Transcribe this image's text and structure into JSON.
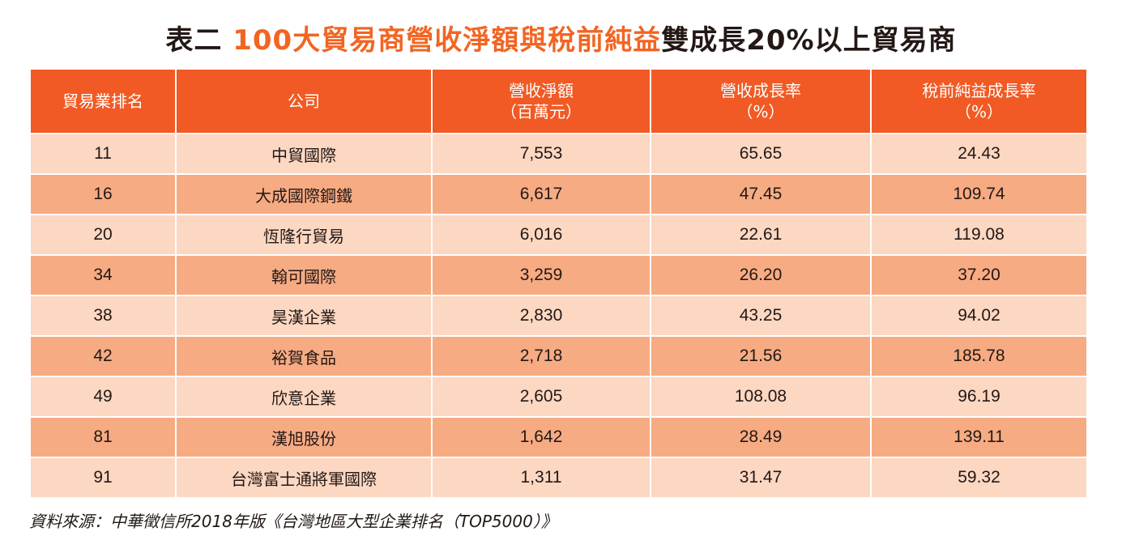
{
  "title": {
    "prefix": "表二 ",
    "highlight": "100大貿易商營收淨額與稅前純益",
    "suffix": "雙成長20%以上貿易商"
  },
  "table": {
    "headers": [
      {
        "line1": "貿易業排名",
        "line2": ""
      },
      {
        "line1": "公司",
        "line2": ""
      },
      {
        "line1": "營收淨額",
        "line2": "（百萬元）"
      },
      {
        "line1": "營收成長率",
        "line2": "（%）"
      },
      {
        "line1": "稅前純益成長率",
        "line2": "（%）"
      }
    ],
    "rows": [
      [
        "11",
        "中貿國際",
        "7,553",
        "65.65",
        "24.43"
      ],
      [
        "16",
        "大成國際鋼鐵",
        "6,617",
        "47.45",
        "109.74"
      ],
      [
        "20",
        "恆隆行貿易",
        "6,016",
        "22.61",
        "119.08"
      ],
      [
        "34",
        "翰可國際",
        "3,259",
        "26.20",
        "37.20"
      ],
      [
        "38",
        "昊漢企業",
        "2,830",
        "43.25",
        "94.02"
      ],
      [
        "42",
        "裕賀食品",
        "2,718",
        "21.56",
        "185.78"
      ],
      [
        "49",
        "欣意企業",
        "2,605",
        "108.08",
        "96.19"
      ],
      [
        "81",
        "漢旭股份",
        "1,642",
        "28.49",
        "139.11"
      ],
      [
        "91",
        "台灣富士通將軍國際",
        "1,311",
        "31.47",
        "59.32"
      ]
    ]
  },
  "footer": "資料來源：中華徵信所2018年版《台灣地區大型企業排名（TOP5000）》",
  "colors": {
    "accent": "#f15a24",
    "row_light": "#fcd7c2",
    "row_dark": "#f6ab83"
  }
}
